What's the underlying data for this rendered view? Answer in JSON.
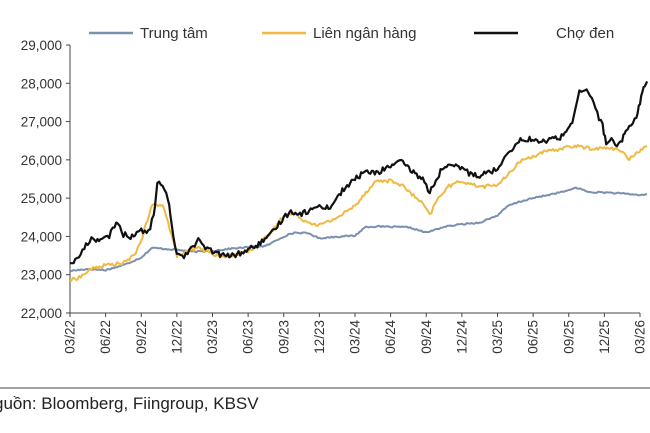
{
  "chart_data": {
    "type": "line",
    "title": "",
    "xlabel": "",
    "ylabel": "",
    "ylim": [
      22000,
      29000
    ],
    "yticks": [
      22000,
      23000,
      24000,
      25000,
      26000,
      27000,
      28000,
      29000
    ],
    "ytick_labels": [
      "22,000",
      "23,000",
      "24,000",
      "25,000",
      "26,000",
      "27,000",
      "28,000",
      "29,000"
    ],
    "x_categories": [
      "03/22",
      "06/22",
      "09/22",
      "12/22",
      "03/23",
      "06/23",
      "09/23",
      "12/23",
      "03/24",
      "06/24",
      "09/24",
      "12/24",
      "03/25",
      "06/25",
      "09/25",
      "12/25",
      "03/26"
    ],
    "legend_position": "top",
    "grid": false,
    "series": [
      {
        "name": "Trung tâm",
        "color": "#7b8fb0",
        "values": [
          [
            0.0,
            23100
          ],
          [
            0.5,
            23150
          ],
          [
            1.0,
            23120
          ],
          [
            1.5,
            23250
          ],
          [
            2.0,
            23450
          ],
          [
            2.3,
            23700
          ],
          [
            2.6,
            23680
          ],
          [
            3.0,
            23650
          ],
          [
            3.5,
            23600
          ],
          [
            4.0,
            23620
          ],
          [
            4.5,
            23680
          ],
          [
            5.0,
            23720
          ],
          [
            5.5,
            23750
          ],
          [
            6.0,
            24000
          ],
          [
            6.3,
            24100
          ],
          [
            6.7,
            24080
          ],
          [
            7.0,
            23950
          ],
          [
            7.3,
            23980
          ],
          [
            7.6,
            24000
          ],
          [
            8.0,
            24020
          ],
          [
            8.3,
            24250
          ],
          [
            8.6,
            24260
          ],
          [
            9.0,
            24250
          ],
          [
            9.5,
            24240
          ],
          [
            10.0,
            24100
          ],
          [
            10.5,
            24250
          ],
          [
            11.0,
            24320
          ],
          [
            11.5,
            24360
          ],
          [
            12.0,
            24550
          ],
          [
            12.3,
            24800
          ],
          [
            12.6,
            24900
          ],
          [
            13.0,
            25000
          ],
          [
            13.5,
            25100
          ],
          [
            14.0,
            25200
          ],
          [
            14.2,
            25280
          ],
          [
            14.6,
            25150
          ],
          [
            15.0,
            25150
          ],
          [
            15.5,
            25120
          ],
          [
            16.0,
            25080
          ],
          [
            16.2,
            25100
          ]
        ]
      },
      {
        "name": "Liên ngân hàng",
        "color": "#f0b940",
        "values": [
          [
            0.0,
            22850
          ],
          [
            0.3,
            22950
          ],
          [
            0.6,
            23150
          ],
          [
            1.0,
            23250
          ],
          [
            1.5,
            23300
          ],
          [
            1.8,
            23500
          ],
          [
            2.0,
            23900
          ],
          [
            2.3,
            24800
          ],
          [
            2.6,
            24850
          ],
          [
            2.8,
            24200
          ],
          [
            3.0,
            23500
          ],
          [
            3.3,
            23600
          ],
          [
            3.6,
            23700
          ],
          [
            4.0,
            23550
          ],
          [
            4.3,
            23450
          ],
          [
            4.7,
            23550
          ],
          [
            5.0,
            23600
          ],
          [
            5.3,
            23800
          ],
          [
            5.6,
            24050
          ],
          [
            6.0,
            24550
          ],
          [
            6.3,
            24600
          ],
          [
            6.6,
            24400
          ],
          [
            7.0,
            24300
          ],
          [
            7.3,
            24400
          ],
          [
            7.6,
            24550
          ],
          [
            8.0,
            24800
          ],
          [
            8.3,
            25150
          ],
          [
            8.6,
            25450
          ],
          [
            9.0,
            25450
          ],
          [
            9.3,
            25350
          ],
          [
            9.6,
            25100
          ],
          [
            9.9,
            24850
          ],
          [
            10.1,
            24550
          ],
          [
            10.3,
            24950
          ],
          [
            10.6,
            25300
          ],
          [
            11.0,
            25450
          ],
          [
            11.3,
            25350
          ],
          [
            11.6,
            25300
          ],
          [
            12.0,
            25350
          ],
          [
            12.3,
            25600
          ],
          [
            12.6,
            25950
          ],
          [
            13.0,
            26100
          ],
          [
            13.3,
            26200
          ],
          [
            13.6,
            26250
          ],
          [
            14.0,
            26350
          ],
          [
            14.3,
            26350
          ],
          [
            14.6,
            26300
          ],
          [
            15.0,
            26300
          ],
          [
            15.3,
            26300
          ],
          [
            15.5,
            26200
          ],
          [
            15.7,
            26000
          ],
          [
            15.9,
            26200
          ],
          [
            16.2,
            26350
          ]
        ]
      },
      {
        "name": "Chợ đen",
        "color": "#111111",
        "values": [
          [
            0.0,
            23300
          ],
          [
            0.2,
            23400
          ],
          [
            0.4,
            23700
          ],
          [
            0.6,
            23950
          ],
          [
            0.9,
            23900
          ],
          [
            1.1,
            24000
          ],
          [
            1.3,
            24400
          ],
          [
            1.5,
            24050
          ],
          [
            1.7,
            24000
          ],
          [
            2.0,
            24150
          ],
          [
            2.2,
            24100
          ],
          [
            2.35,
            24550
          ],
          [
            2.45,
            25400
          ],
          [
            2.6,
            25300
          ],
          [
            2.75,
            25000
          ],
          [
            2.85,
            24300
          ],
          [
            3.0,
            23550
          ],
          [
            3.2,
            23500
          ],
          [
            3.4,
            23700
          ],
          [
            3.6,
            23900
          ],
          [
            3.8,
            23700
          ],
          [
            4.0,
            23600
          ],
          [
            4.3,
            23500
          ],
          [
            4.6,
            23500
          ],
          [
            5.0,
            23650
          ],
          [
            5.3,
            23800
          ],
          [
            5.6,
            24000
          ],
          [
            6.0,
            24500
          ],
          [
            6.2,
            24650
          ],
          [
            6.5,
            24600
          ],
          [
            6.8,
            24700
          ],
          [
            7.0,
            24800
          ],
          [
            7.3,
            24750
          ],
          [
            7.6,
            25150
          ],
          [
            8.0,
            25500
          ],
          [
            8.3,
            25700
          ],
          [
            8.6,
            25650
          ],
          [
            9.0,
            25850
          ],
          [
            9.3,
            25950
          ],
          [
            9.6,
            25700
          ],
          [
            9.9,
            25500
          ],
          [
            10.1,
            25150
          ],
          [
            10.4,
            25700
          ],
          [
            10.7,
            25850
          ],
          [
            11.0,
            25800
          ],
          [
            11.2,
            25650
          ],
          [
            11.5,
            25600
          ],
          [
            11.8,
            25700
          ],
          [
            12.0,
            25750
          ],
          [
            12.2,
            26100
          ],
          [
            12.4,
            26300
          ],
          [
            12.6,
            26500
          ],
          [
            12.9,
            26550
          ],
          [
            13.2,
            26450
          ],
          [
            13.5,
            26550
          ],
          [
            13.8,
            26600
          ],
          [
            14.1,
            27000
          ],
          [
            14.3,
            27750
          ],
          [
            14.5,
            27800
          ],
          [
            14.65,
            27650
          ],
          [
            14.8,
            27200
          ],
          [
            14.95,
            26900
          ],
          [
            15.05,
            26400
          ],
          [
            15.2,
            26550
          ],
          [
            15.35,
            26300
          ],
          [
            15.5,
            26500
          ],
          [
            15.6,
            26800
          ],
          [
            15.75,
            26900
          ],
          [
            15.9,
            27150
          ],
          [
            16.0,
            27500
          ],
          [
            16.1,
            27900
          ],
          [
            16.2,
            28050
          ]
        ]
      }
    ]
  },
  "source_text": "guồn: Bloomberg, Fiingroup, KBSV"
}
